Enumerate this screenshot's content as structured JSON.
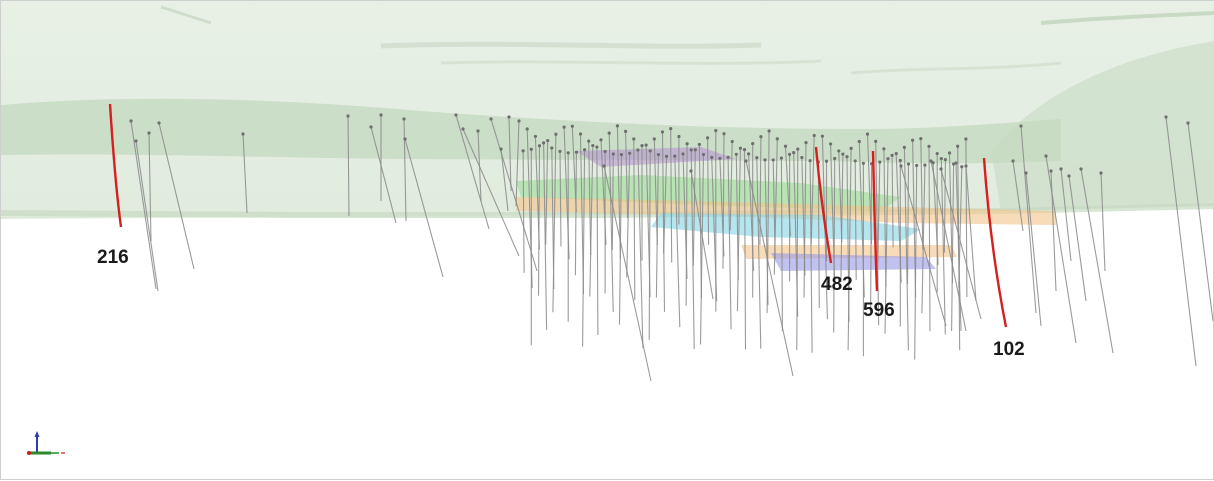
{
  "colors": {
    "background": "#ffffff",
    "surface_upper": "#e3eee1",
    "surface_band": "#c9dcc4",
    "drillhole_trace": "#8a8a8a",
    "highlight_trace": "#d42020",
    "zone_purple": "#b78fd6",
    "zone_green": "#9fdc9a",
    "zone_orange": "#f4c48a",
    "zone_cyan": "#8ed7e6",
    "zone_blue": "#9a9ae6",
    "axis_vertical": "#2b3bb0",
    "axis_horizontal": "#2a8a2a",
    "axis_third": "#c02020"
  },
  "highlighted_holes": [
    {
      "id": "216"
    },
    {
      "id": "482"
    },
    {
      "id": "596"
    },
    {
      "id": "102"
    }
  ],
  "icons": {
    "orientation_triad": "xyz-axes-icon"
  }
}
